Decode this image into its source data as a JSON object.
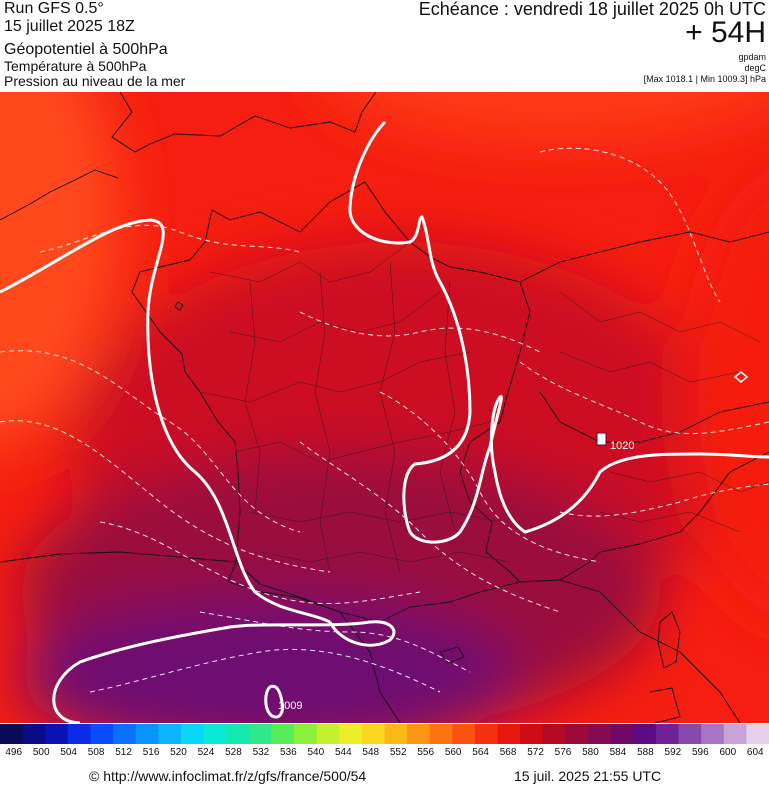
{
  "header": {
    "run": "Run GFS 0.5°",
    "run_date": "15 juillet 2025 18Z",
    "param1": "Géopotentiel à 500hPa",
    "param2": "Température à 500hPa",
    "param3": "Pression au niveau de la mer",
    "echeance": "Echéance : vendredi 18 juillet 2025 0h UTC",
    "lead": "+ 54H",
    "unit1": "gpdam",
    "unit2": "degC",
    "range": "[Max 1018.1 | Min 1009.3] hPa"
  },
  "map": {
    "isobar_labels": [
      "1020",
      "1009"
    ],
    "colors": {
      "orange": "#ff4a1a",
      "red": "#f51e10",
      "crimson": "#cc0c24",
      "maroon": "#9a0a3e",
      "purple": "#6e0872",
      "boundary": "#111111",
      "isobar": "#ffffff"
    }
  },
  "scale": {
    "ticks": [
      "496",
      "500",
      "504",
      "508",
      "512",
      "516",
      "520",
      "524",
      "528",
      "532",
      "536",
      "540",
      "544",
      "548",
      "552",
      "556",
      "560",
      "564",
      "568",
      "572",
      "576",
      "580",
      "584",
      "588",
      "592",
      "596",
      "600",
      "604"
    ],
    "colors": [
      "#0a0a58",
      "#0a0a86",
      "#0b12b4",
      "#0a2ce8",
      "#0a4cff",
      "#0a70ff",
      "#0a94ff",
      "#0ab6ff",
      "#0ad6f6",
      "#0ae8d6",
      "#12e8b0",
      "#30e88a",
      "#56ec5a",
      "#8cf03a",
      "#c2f22e",
      "#eeee26",
      "#fad81e",
      "#fcb814",
      "#fc9610",
      "#fc7410",
      "#fc520e",
      "#f4300e",
      "#e4180e",
      "#ce0c16",
      "#b40a26",
      "#9c0a3a",
      "#840a52",
      "#70086a",
      "#5e0a80",
      "#6e2296",
      "#8a48ae",
      "#a874c4",
      "#c8a2d8",
      "#e6d0ec"
    ]
  },
  "footer": {
    "url": "© http://www.infoclimat.fr/z/gfs/france/500/54",
    "timestamp": "15 juil. 2025 21:55 UTC"
  }
}
